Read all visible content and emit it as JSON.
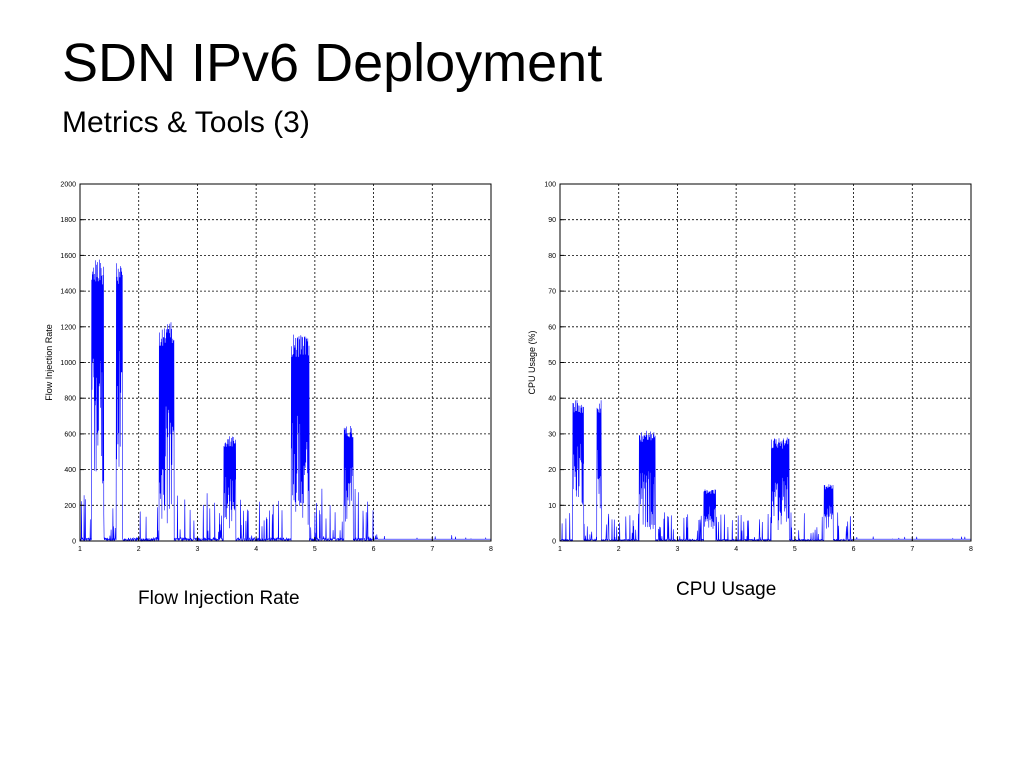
{
  "slide": {
    "title": "SDN IPv6 Deployment",
    "subtitle": "Metrics & Tools (3)"
  },
  "captions": {
    "left": "Flow Injection Rate",
    "right": "CPU Usage"
  },
  "chart_data": [
    {
      "type": "line",
      "title": "",
      "xlabel": "",
      "ylabel": "Flow Injection Rate",
      "xlim": [
        1,
        8
      ],
      "ylim": [
        0,
        2000
      ],
      "xticks": [
        1,
        2,
        3,
        4,
        5,
        6,
        7,
        8
      ],
      "yticks": [
        0,
        200,
        400,
        600,
        800,
        1000,
        1200,
        1400,
        1600,
        1800,
        2000
      ],
      "grid": true,
      "series": [
        {
          "color": "#0000ff",
          "bursts": [
            {
              "x_start": 1.2,
              "x_end": 1.4,
              "y_high": 1590,
              "y_low": 320
            },
            {
              "x_start": 1.62,
              "x_end": 1.72,
              "y_high": 1590,
              "y_low": 300
            },
            {
              "x_start": 2.35,
              "x_end": 2.6,
              "y_high": 1230,
              "y_low": 80
            },
            {
              "x_start": 3.45,
              "x_end": 3.65,
              "y_high": 590,
              "y_low": 60
            },
            {
              "x_start": 4.6,
              "x_end": 4.9,
              "y_high": 1160,
              "y_low": 60
            },
            {
              "x_start": 5.5,
              "x_end": 5.65,
              "y_high": 650,
              "y_low": 60
            }
          ],
          "active_range": [
            1.0,
            6.0
          ],
          "noise_max": 300,
          "idle_level": 10
        }
      ]
    },
    {
      "type": "line",
      "title": "",
      "xlabel": "",
      "ylabel": "CPU Usage (%)",
      "xlim": [
        1,
        8
      ],
      "ylim": [
        0,
        100
      ],
      "xticks": [
        1,
        2,
        3,
        4,
        5,
        6,
        7,
        8
      ],
      "yticks": [
        0,
        10,
        20,
        30,
        40,
        50,
        60,
        70,
        80,
        90,
        100
      ],
      "grid": true,
      "series": [
        {
          "color": "#0000ff",
          "bursts": [
            {
              "x_start": 1.22,
              "x_end": 1.4,
              "y_high": 39.5,
              "y_low": 9
            },
            {
              "x_start": 1.63,
              "x_end": 1.7,
              "y_high": 39.5,
              "y_low": 9
            },
            {
              "x_start": 2.35,
              "x_end": 2.62,
              "y_high": 31,
              "y_low": 3
            },
            {
              "x_start": 3.45,
              "x_end": 3.65,
              "y_high": 14.5,
              "y_low": 3
            },
            {
              "x_start": 4.6,
              "x_end": 4.9,
              "y_high": 29,
              "y_low": 3
            },
            {
              "x_start": 5.5,
              "x_end": 5.65,
              "y_high": 16,
              "y_low": 3
            }
          ],
          "active_range": [
            1.0,
            6.0
          ],
          "noise_max": 8,
          "idle_level": 0.5
        }
      ]
    }
  ]
}
